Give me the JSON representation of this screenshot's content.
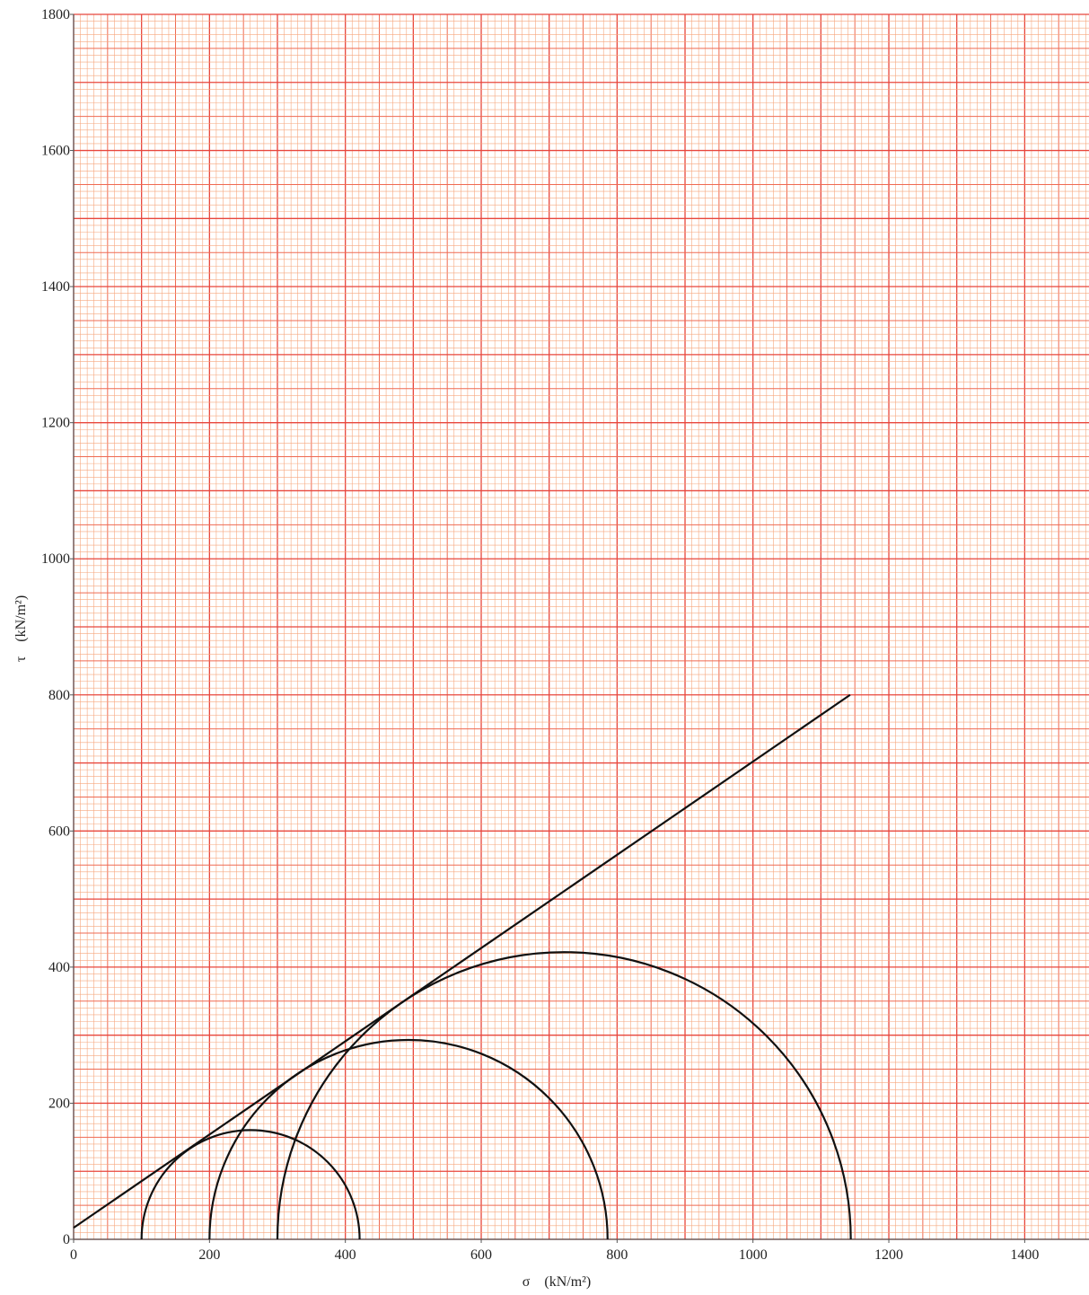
{
  "chart_data": {
    "type": "mohr",
    "x_label": "σ　(kN/m²)",
    "y_label": "τ　(kN/m²)",
    "xlim": [
      0,
      1500
    ],
    "ylim": [
      0,
      1800
    ],
    "xticks": [
      0,
      200,
      400,
      600,
      800,
      1000,
      1200,
      1400
    ],
    "yticks": [
      0,
      200,
      400,
      600,
      800,
      1000,
      1200,
      1400,
      1600,
      1800
    ],
    "grid": {
      "major": 100,
      "medium": 50,
      "minor": 10
    },
    "circles": [
      {
        "sigma3": 100,
        "sigma1": 421
      },
      {
        "sigma3": 200,
        "sigma1": 786
      },
      {
        "sigma3": 300,
        "sigma1": 1144
      }
    ],
    "line": {
      "x": [
        0,
        1143
      ],
      "y": [
        17,
        800
      ]
    },
    "color": "#111111"
  }
}
